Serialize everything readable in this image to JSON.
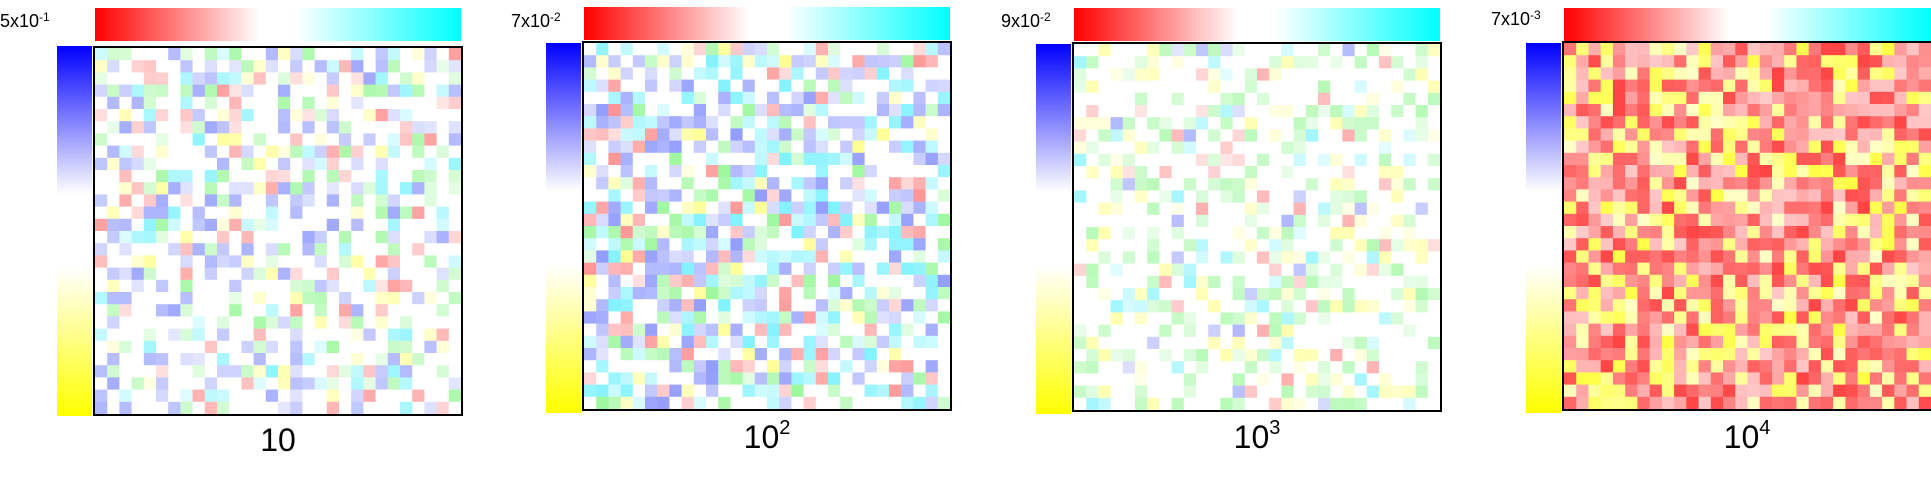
{
  "chart_data": [
    {
      "type": "heatmap",
      "x_label_base": "10",
      "x_label_exp": "",
      "scale_max_base": "5x10",
      "scale_max_exp": "-1",
      "color_scale": {
        "vertical": [
          "#0000ff",
          "#ffffff",
          "#ffff00"
        ],
        "horizontal": [
          "#ff0000",
          "#ffffff",
          "#00ffff"
        ]
      },
      "cell_colors": [
        "white",
        "blue",
        "cyan",
        "green",
        "yellow",
        "red"
      ],
      "weights": [
        0.45,
        0.2,
        0.08,
        0.12,
        0.07,
        0.08
      ],
      "intensity": 0.35,
      "grid_size": 30
    },
    {
      "type": "heatmap",
      "x_label_base": "10",
      "x_label_exp": "2",
      "scale_max_base": "7x10",
      "scale_max_exp": "-2",
      "color_scale": {
        "vertical": [
          "#0000ff",
          "#ffffff",
          "#ffff00"
        ],
        "horizontal": [
          "#ff0000",
          "#ffffff",
          "#00ffff"
        ]
      },
      "cell_colors": [
        "white",
        "blue",
        "cyan",
        "green",
        "yellow",
        "red"
      ],
      "weights": [
        0.3,
        0.22,
        0.2,
        0.12,
        0.06,
        0.1
      ],
      "intensity": 0.4,
      "grid_size": 30
    },
    {
      "type": "heatmap",
      "x_label_base": "10",
      "x_label_exp": "3",
      "scale_max_base": "9x10",
      "scale_max_exp": "-2",
      "color_scale": {
        "vertical": [
          "#0000ff",
          "#ffffff",
          "#ffff00"
        ],
        "horizontal": [
          "#ff0000",
          "#ffffff",
          "#00ffff"
        ]
      },
      "cell_colors": [
        "white",
        "green",
        "yellow",
        "cyan",
        "red",
        "blue"
      ],
      "weights": [
        0.55,
        0.22,
        0.12,
        0.05,
        0.04,
        0.02
      ],
      "intensity": 0.3,
      "grid_size": 30
    },
    {
      "type": "heatmap",
      "x_label_base": "10",
      "x_label_exp": "4",
      "scale_max_base": "7x10",
      "scale_max_exp": "-3",
      "color_scale": {
        "vertical": [
          "#0000ff",
          "#ffffff",
          "#ffff00"
        ],
        "horizontal": [
          "#ff0000",
          "#ffffff",
          "#00ffff"
        ]
      },
      "cell_colors": [
        "red",
        "yellow"
      ],
      "weights": [
        0.7,
        0.3
      ],
      "intensity": 0.7,
      "grid_size": 30
    }
  ]
}
